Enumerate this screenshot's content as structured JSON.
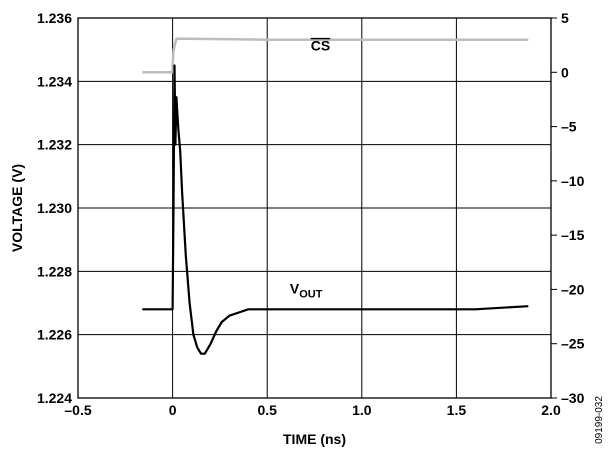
{
  "chart_data": {
    "type": "line",
    "xlabel": "TIME (ns)",
    "ylabel": "VOLTAGE (V)",
    "xlim": [
      -0.5,
      2.0
    ],
    "ylim": [
      1.224,
      1.236
    ],
    "y2lim": [
      -30,
      5
    ],
    "grid": true,
    "x_ticks": [
      "–0.5",
      "0",
      "0.5",
      "1.0",
      "1.5",
      "2.0"
    ],
    "y_ticks": [
      "1.224",
      "1.226",
      "1.228",
      "1.230",
      "1.232",
      "1.234",
      "1.236"
    ],
    "y2_ticks": [
      "–30",
      "–25",
      "–20",
      "–15",
      "–10",
      "–5",
      "0",
      "5"
    ],
    "figure_id": "09199-032",
    "series": [
      {
        "name": "CS",
        "label_main": "CS",
        "label_sub": "",
        "overbar": true,
        "axis": "right",
        "color": "#bdbdbd",
        "x": [
          -0.16,
          0.0,
          0.0,
          0.005,
          0.02,
          0.5,
          1.0,
          1.5,
          1.88
        ],
        "y": [
          0.0,
          0.0,
          0.6,
          2.0,
          3.1,
          3.0,
          3.0,
          3.0,
          3.0
        ]
      },
      {
        "name": "VOUT",
        "label_main": "V",
        "label_sub": "OUT",
        "overbar": false,
        "axis": "left",
        "color": "#000000",
        "x": [
          -0.16,
          -0.1,
          -0.05,
          0.0,
          0.005,
          0.01,
          0.015,
          0.02,
          0.03,
          0.04,
          0.05,
          0.07,
          0.09,
          0.11,
          0.13,
          0.15,
          0.17,
          0.2,
          0.23,
          0.26,
          0.3,
          0.35,
          0.4,
          0.5,
          0.6,
          0.8,
          1.0,
          1.2,
          1.4,
          1.6,
          1.88
        ],
        "y": [
          1.2268,
          1.2268,
          1.2268,
          1.2268,
          1.23,
          1.2345,
          1.232,
          1.2335,
          1.2325,
          1.2318,
          1.2305,
          1.2285,
          1.227,
          1.226,
          1.2256,
          1.2254,
          1.2254,
          1.2257,
          1.2261,
          1.2264,
          1.2266,
          1.2267,
          1.2268,
          1.2268,
          1.2268,
          1.2268,
          1.2268,
          1.2268,
          1.2268,
          1.2268,
          1.2269
        ]
      }
    ]
  }
}
